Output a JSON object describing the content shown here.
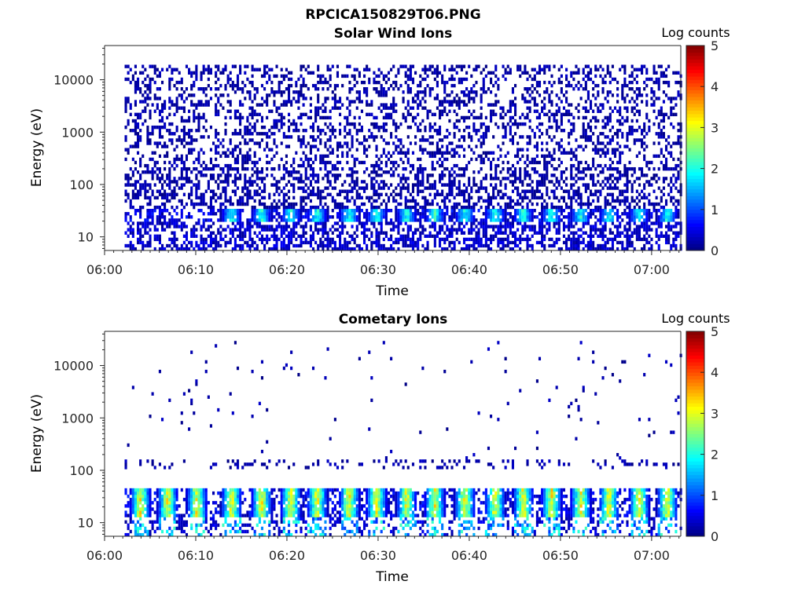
{
  "figure_title": "RPCICA150829T06.PNG",
  "colors": {
    "colormap": "jet",
    "axis": "#262626"
  },
  "chart_data": [
    {
      "type": "heatmap",
      "title": "Solar Wind Ions",
      "xlabel": "Time",
      "ylabel": "Energy (eV)",
      "x_tick_labels": [
        "06:00",
        "06:10",
        "06:20",
        "06:30",
        "06:40",
        "06:50",
        "07:00"
      ],
      "x_ticks_min": [
        0,
        10,
        20,
        30,
        40,
        50,
        60
      ],
      "xlim_min": [
        0,
        63.2
      ],
      "data_xlim_min": [
        2.2,
        63.1
      ],
      "y_scale": "log",
      "y_tick_labels": [
        "10",
        "100",
        "1000",
        "10000"
      ],
      "y_tick_values": [
        10,
        100,
        1000,
        10000
      ],
      "ylim": [
        5.5,
        45000
      ],
      "colorbar": {
        "label": "Log counts",
        "ticks": [
          "0",
          "1",
          "2",
          "3",
          "4",
          "5"
        ],
        "range": [
          0,
          5
        ]
      },
      "pattern": "broad",
      "band_peak_log_counts": 2.4,
      "band_energy_ev": [
        20,
        35
      ],
      "noise_energy_ev": [
        12,
        20000
      ],
      "band_peak_times_min": [
        13.8,
        17.1,
        20.3,
        23.2,
        26.7,
        29.7,
        33.0,
        36.1,
        39.4,
        42.7,
        45.8,
        48.9,
        52.1,
        55.2,
        58.5,
        61.6
      ]
    },
    {
      "type": "heatmap",
      "title": "Cometary Ions",
      "xlabel": "Time",
      "ylabel": "Energy (eV)",
      "x_tick_labels": [
        "06:00",
        "06:10",
        "06:20",
        "06:30",
        "06:40",
        "06:50",
        "07:00"
      ],
      "x_ticks_min": [
        0,
        10,
        20,
        30,
        40,
        50,
        60
      ],
      "xlim_min": [
        0,
        63.2
      ],
      "data_xlim_min": [
        2.2,
        63.1
      ],
      "y_scale": "log",
      "y_tick_labels": [
        "10",
        "100",
        "1000",
        "10000"
      ],
      "y_tick_values": [
        10,
        100,
        1000,
        10000
      ],
      "ylim": [
        5.5,
        45000
      ],
      "colorbar": {
        "label": "Log counts",
        "ticks": [
          "0",
          "1",
          "2",
          "3",
          "4",
          "5"
        ],
        "range": [
          0,
          5
        ]
      },
      "pattern": "sparse",
      "band_peak_log_counts": 3.6,
      "band_energy_ev": [
        12,
        45
      ],
      "noise_energy_ev": [
        100,
        30000
      ],
      "band_peak_times_min": [
        3.8,
        6.8,
        10.0,
        13.8,
        17.1,
        20.3,
        23.2,
        26.7,
        29.7,
        33.0,
        36.1,
        39.4,
        42.7,
        45.8,
        48.9,
        52.1,
        55.2,
        58.5,
        61.6
      ]
    }
  ]
}
